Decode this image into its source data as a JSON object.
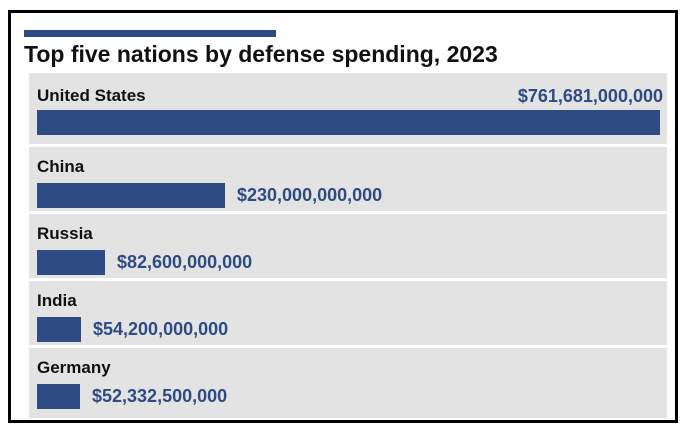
{
  "colors": {
    "bar": "#2f4b84",
    "row_background": "#e3e3e3",
    "accent": "#2f4b84"
  },
  "chart_data": {
    "type": "bar",
    "orientation": "horizontal",
    "title": "Top five nations by defense spending, 2023",
    "categories": [
      "United States",
      "China",
      "Russia",
      "India",
      "Germany"
    ],
    "values": [
      761681000000,
      230000000000,
      82600000000,
      54200000000,
      52332500000
    ],
    "value_labels": [
      "$761,681,000,000",
      "$230,000,000,000",
      "$82,600,000,000",
      "$54,200,000,000",
      "$52,332,500,000"
    ],
    "xlim": [
      0,
      761681000000
    ],
    "xlabel": "",
    "ylabel": "",
    "grid": false,
    "legend": "none"
  }
}
